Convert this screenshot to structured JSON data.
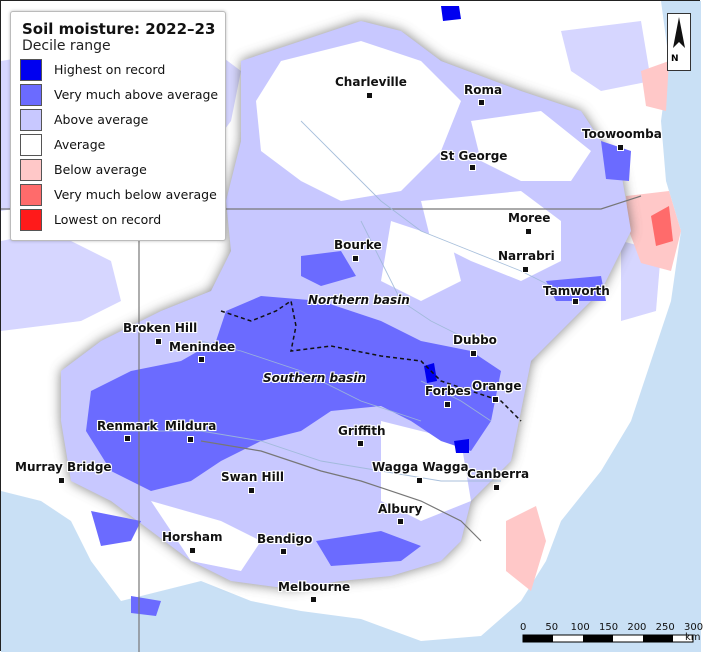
{
  "legend": {
    "title": "Soil moisture: 2022–23",
    "subtitle": "Decile range",
    "items": [
      {
        "label": "Highest on record",
        "color": "#0000f0"
      },
      {
        "label": "Very much above average",
        "color": "#6b6bff"
      },
      {
        "label": "Above average",
        "color": "#c8c8ff"
      },
      {
        "label": "Average",
        "color": "#ffffff"
      },
      {
        "label": "Below average",
        "color": "#ffc8c8"
      },
      {
        "label": "Very much below average",
        "color": "#ff6b6b"
      },
      {
        "label": "Lowest on record",
        "color": "#ff1a1a"
      }
    ]
  },
  "places": [
    {
      "name": "Charleville"
    },
    {
      "name": "Roma"
    },
    {
      "name": "Toowoomba"
    },
    {
      "name": "St George"
    },
    {
      "name": "Moree"
    },
    {
      "name": "Bourke"
    },
    {
      "name": "Narrabri"
    },
    {
      "name": "Tamworth"
    },
    {
      "name": "Broken Hill"
    },
    {
      "name": "Menindee"
    },
    {
      "name": "Dubbo"
    },
    {
      "name": "Orange"
    },
    {
      "name": "Forbes"
    },
    {
      "name": "Renmark"
    },
    {
      "name": "Mildura"
    },
    {
      "name": "Griffith"
    },
    {
      "name": "Murray Bridge"
    },
    {
      "name": "Swan Hill"
    },
    {
      "name": "Wagga Wagga"
    },
    {
      "name": "Canberra"
    },
    {
      "name": "Albury"
    },
    {
      "name": "Horsham"
    },
    {
      "name": "Bendigo"
    },
    {
      "name": "Melbourne"
    }
  ],
  "basins": {
    "northern": "Northern basin",
    "southern": "Southern basin"
  },
  "scale_bar": {
    "ticks": [
      "0",
      "50",
      "100",
      "150",
      "200",
      "250",
      "300"
    ],
    "unit": "km"
  },
  "north_arrow": {
    "label": "N",
    "icon": "north-arrow-icon"
  },
  "colors": {
    "ocean": "#c9e0f5",
    "outside_basin": "#ffffff",
    "basin_fill": "#c8c8ff"
  }
}
